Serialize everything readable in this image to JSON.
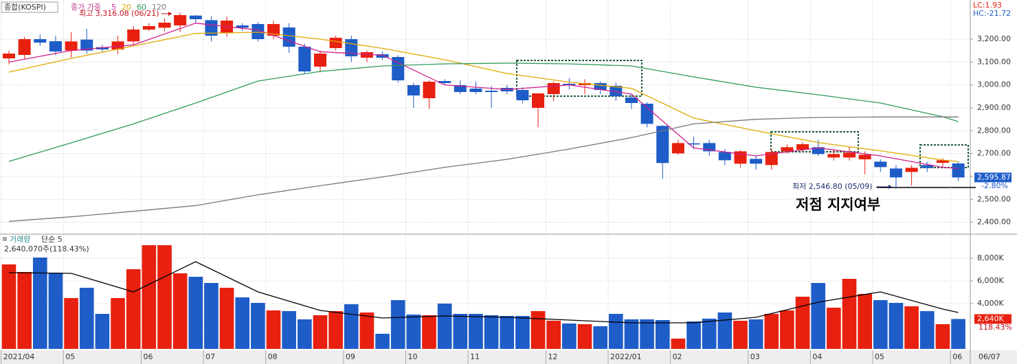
{
  "chart_data": [
    {
      "type": "candlestick",
      "title": "종합(KOSPI)",
      "legend_prefix": "종가 가중",
      "indicators": [
        "LC:1.93",
        "HC:-21.72"
      ],
      "open": [
        3116,
        3131,
        3200,
        3191,
        3150,
        3198,
        3165,
        3155,
        3190,
        3242,
        3250,
        3260,
        3303,
        3283,
        3227,
        3260,
        3266,
        3215,
        3251,
        3167,
        3080,
        3161,
        3200,
        3119,
        3134,
        3122,
        2999,
        2942,
        3017,
        2999,
        2984,
        2975,
        2987,
        2978,
        2900,
        2960,
        3005,
        2999,
        3008,
        2996,
        2945,
        2918,
        2821,
        2701,
        2745,
        2746,
        2707,
        2656,
        2677,
        2650,
        2710,
        2717,
        2728,
        2683,
        2683,
        2675,
        2665,
        2635,
        2620,
        2650,
        2660,
        2657
      ],
      "high": [
        3150,
        3210,
        3220,
        3215,
        3230,
        3245,
        3175,
        3215,
        3258,
        3270,
        3290,
        3316.08,
        3305,
        3300,
        3300,
        3270,
        3275,
        3280,
        3270,
        3180,
        3150,
        3215,
        3215,
        3150,
        3145,
        3130,
        3010,
        3020,
        3025,
        3020,
        3015,
        2995,
        3000,
        2990,
        2965,
        3015,
        3030,
        3025,
        3015,
        3010,
        2960,
        2925,
        2825,
        2760,
        2775,
        2760,
        2720,
        2715,
        2690,
        2720,
        2740,
        2750,
        2760,
        2720,
        2730,
        2710,
        2675,
        2650,
        2650,
        2665,
        2680,
        2665
      ],
      "low": [
        3090,
        3110,
        3170,
        3130,
        3120,
        3135,
        3145,
        3135,
        3175,
        3235,
        3235,
        3230,
        3270,
        3190,
        3210,
        3235,
        3190,
        3200,
        3140,
        3050,
        3055,
        3150,
        3100,
        3100,
        3110,
        3010,
        2900,
        2895,
        3000,
        2960,
        2960,
        2900,
        2960,
        2920,
        2815,
        2930,
        2980,
        2960,
        2960,
        2930,
        2895,
        2815,
        2590,
        2695,
        2720,
        2690,
        2650,
        2640,
        2630,
        2630,
        2700,
        2710,
        2690,
        2670,
        2670,
        2610,
        2620,
        2546.8,
        2560,
        2620,
        2640,
        2580
      ],
      "close": [
        3137,
        3200,
        3185,
        3146,
        3190,
        3150,
        3155,
        3190,
        3242,
        3257,
        3272,
        3305,
        3287,
        3215,
        3281,
        3250,
        3200,
        3266,
        3167,
        3059,
        3137,
        3206,
        3125,
        3143,
        3119,
        3020,
        2954,
        3014,
        3008,
        2969,
        2969,
        2969,
        2972,
        2933,
        2963,
        3008,
        2999,
        3008,
        2978,
        2951,
        2921,
        2830,
        2659,
        2746,
        2740,
        2710,
        2671,
        2710,
        2656,
        2707,
        2728,
        2741,
        2698,
        2698,
        2704,
        2695,
        2641,
        2596,
        2638,
        2638,
        2671,
        2595.87
      ],
      "up_color": "#e8200f",
      "down_color": "#1e5cc8",
      "series": [
        {
          "name": "5",
          "color": "#d0208c",
          "x": [
            0,
            4,
            8,
            12,
            16,
            20,
            24,
            28,
            32,
            36,
            40,
            44,
            48,
            52,
            56,
            60,
            61
          ],
          "values": [
            3100,
            3150,
            3175,
            3270,
            3240,
            3145,
            3130,
            3000,
            2980,
            3000,
            2960,
            2725,
            2690,
            2725,
            2690,
            2640,
            2635
          ]
        },
        {
          "name": "20",
          "color": "#e0a800",
          "x": [
            0,
            4,
            8,
            12,
            16,
            20,
            24,
            28,
            32,
            36,
            40,
            44,
            48,
            52,
            56,
            60,
            61
          ],
          "values": [
            3056,
            3116,
            3170,
            3225,
            3230,
            3200,
            3160,
            3110,
            3050,
            3012,
            2985,
            2855,
            2800,
            2748,
            2712,
            2672,
            2665
          ]
        },
        {
          "name": "60",
          "color": "#2e9a5a",
          "x": [
            0,
            4,
            8,
            12,
            16,
            20,
            24,
            28,
            32,
            36,
            40,
            44,
            48,
            52,
            56,
            60,
            61
          ],
          "values": [
            2666,
            2747,
            2830,
            2921,
            3017,
            3059,
            3083,
            3092,
            3095,
            3092,
            3083,
            3035,
            2990,
            2957,
            2921,
            2861,
            2840
          ]
        },
        {
          "name": "120",
          "color": "#777777",
          "x": [
            0,
            4,
            8,
            12,
            16,
            20,
            24,
            28,
            32,
            36,
            40,
            44,
            48,
            52,
            56,
            60,
            61
          ],
          "values": [
            2404,
            2424,
            2448,
            2473,
            2520,
            2560,
            2598,
            2640,
            2675,
            2720,
            2770,
            2830,
            2850,
            2858,
            2860,
            2860,
            2860
          ]
        }
      ],
      "xlim": [
        -0.574,
        61.77
      ],
      "ylim": [
        2351,
        3371
      ],
      "yticks": [
        {
          "value": 3200,
          "label": "3,200.00"
        },
        {
          "value": 3100,
          "label": "3,100.00"
        },
        {
          "value": 3000,
          "label": "3,000.00"
        },
        {
          "value": 2900,
          "label": "2,900.00"
        },
        {
          "value": 2800,
          "label": "2,800.00"
        },
        {
          "value": 2700,
          "label": "2,700.00"
        },
        {
          "value": 2600,
          "label": "2,600.00"
        },
        {
          "value": 2500,
          "label": "2,500.00"
        },
        {
          "value": 2400,
          "label": "2,400.00"
        }
      ],
      "xticks": [
        {
          "value": 0,
          "label": "2021/04"
        },
        {
          "value": 4,
          "label": "05"
        },
        {
          "value": 9,
          "label": "06"
        },
        {
          "value": 13,
          "label": "07"
        },
        {
          "value": 17,
          "label": "08"
        },
        {
          "value": 22,
          "label": "09"
        },
        {
          "value": 26,
          "label": "10"
        },
        {
          "value": 30,
          "label": "11"
        },
        {
          "value": 35,
          "label": "12"
        },
        {
          "value": 39,
          "label": "2022/01"
        },
        {
          "value": 43,
          "label": "02"
        },
        {
          "value": 48,
          "label": "03"
        },
        {
          "value": 52,
          "label": "04"
        },
        {
          "value": 56,
          "label": "05"
        },
        {
          "value": 61,
          "label": "06"
        }
      ],
      "high_annotation": "최고 3,316.08 (06/21)",
      "low_annotation": "최저 2,546.80 (05/09)",
      "note": "저점 지지여부",
      "last": {
        "value": 2595.87,
        "label": "2,595.87"
      },
      "change_label": "-2.80%",
      "date_label": "06/07"
    },
    {
      "type": "bar",
      "title": "거래량",
      "subtitle": "2,640,070주(118.43%)",
      "values": [
        7454,
        6788,
        8060,
        6727,
        4485,
        5394,
        3091,
        4485,
        7030,
        9150,
        9150,
        6667,
        6364,
        5818,
        5394,
        4545,
        4060,
        3394,
        3333,
        2606,
        2970,
        3333,
        3939,
        3212,
        1333,
        4303,
        3030,
        2970,
        4000,
        3091,
        3091,
        2970,
        2909,
        2909,
        3333,
        2485,
        2242,
        2182,
        2000,
        3091,
        2606,
        2606,
        2545,
        909,
        2424,
        2667,
        3212,
        2485,
        2606,
        3091,
        3394,
        4606,
        5818,
        3636,
        6182,
        4848,
        4303,
        4060,
        3758,
        3333,
        2182,
        2640
      ],
      "series": [
        {
          "name": "단순 5",
          "color": "#000000",
          "x": [
            0,
            4,
            8,
            12,
            16,
            20,
            24,
            28,
            32,
            36,
            40,
            44,
            48,
            52,
            56,
            60,
            61
          ],
          "values": [
            6727,
            6667,
            5030,
            7697,
            5030,
            3394,
            2727,
            2909,
            2788,
            2545,
            2303,
            2303,
            2788,
            4121,
            5030,
            3515,
            3212
          ]
        }
      ],
      "ylim": [
        0,
        10000
      ],
      "yticks": [
        {
          "value": 8000,
          "label": "8,000K"
        },
        {
          "value": 6000,
          "label": "6,000K"
        },
        {
          "value": 4000,
          "label": "4,000K"
        }
      ],
      "last": {
        "value": 2640,
        "label": "2,640K"
      },
      "ratio_label": "118.43%"
    }
  ]
}
